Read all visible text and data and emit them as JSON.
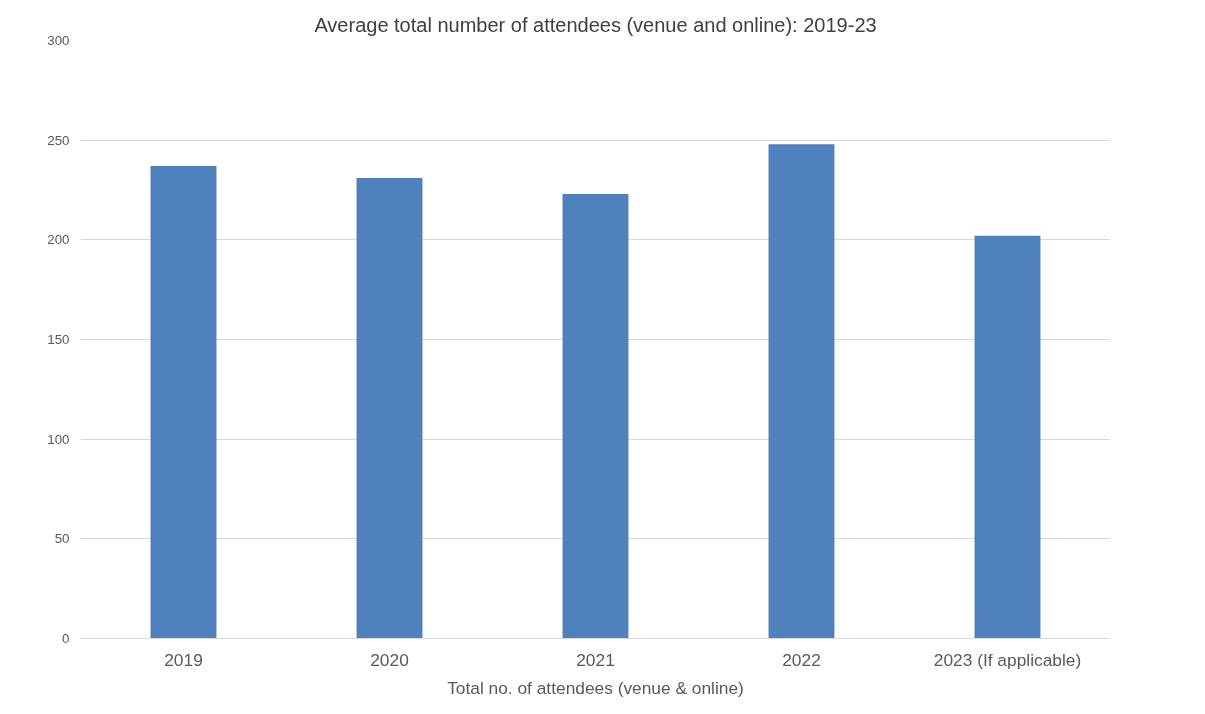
{
  "chart_data": {
    "type": "bar",
    "title": "Average total number of attendees (venue and online): 2019-23",
    "xlabel": "Total no. of attendees (venue & online)",
    "categories": [
      "2019",
      "2020",
      "2021",
      "2022",
      "2023 (If applicable)"
    ],
    "values": [
      237,
      231,
      223,
      248,
      202
    ],
    "color": "#4f81bd",
    "ylim": [
      0,
      300
    ],
    "yticks": [
      0,
      50,
      100,
      150,
      200,
      250,
      300
    ],
    "grid": "y"
  }
}
